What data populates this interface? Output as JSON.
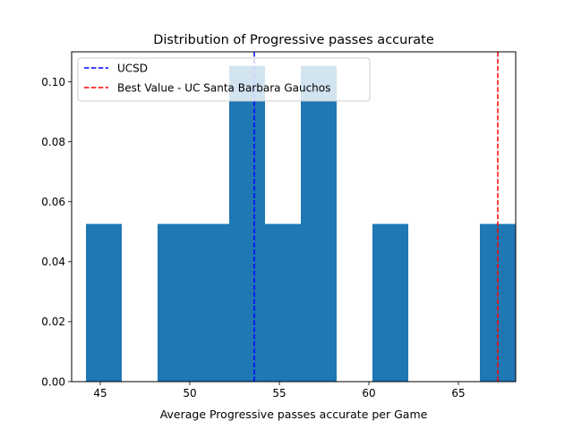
{
  "chart_data": {
    "type": "histogram",
    "title": "Distribution of Progressive passes accurate",
    "xlabel": "Average Progressive passes accurate per Game",
    "ylabel": "",
    "xlim": [
      43.4,
      68.2
    ],
    "ylim": [
      0,
      0.11
    ],
    "xticks": [
      45,
      50,
      55,
      60,
      65
    ],
    "yticks": [
      0.0,
      0.02,
      0.04,
      0.06,
      0.08,
      0.1
    ],
    "ytick_labels": [
      "0.00",
      "0.02",
      "0.04",
      "0.06",
      "0.08",
      "0.10"
    ],
    "bins": [
      {
        "x0": 44.2,
        "x1": 46.2,
        "density": 0.0526
      },
      {
        "x0": 46.2,
        "x1": 48.2,
        "density": 0.0
      },
      {
        "x0": 48.2,
        "x1": 50.2,
        "density": 0.0526
      },
      {
        "x0": 50.2,
        "x1": 52.2,
        "density": 0.0526
      },
      {
        "x0": 52.2,
        "x1": 54.2,
        "density": 0.1053
      },
      {
        "x0": 54.2,
        "x1": 56.2,
        "density": 0.0526
      },
      {
        "x0": 56.2,
        "x1": 58.2,
        "density": 0.1053
      },
      {
        "x0": 58.2,
        "x1": 60.2,
        "density": 0.0
      },
      {
        "x0": 60.2,
        "x1": 62.2,
        "density": 0.0526
      },
      {
        "x0": 62.2,
        "x1": 64.2,
        "density": 0.0
      },
      {
        "x0": 64.2,
        "x1": 66.2,
        "density": 0.0
      },
      {
        "x0": 66.2,
        "x1": 68.2,
        "density": 0.0526
      }
    ],
    "bar_color": "#1f77b4",
    "grid": false,
    "legend_position": "upper-left",
    "vlines": [
      {
        "label": "UCSD",
        "x": 53.6,
        "color": "#0000ff",
        "style": "dashed"
      },
      {
        "label": "Best Value - UC Santa Barbara Gauchos",
        "x": 67.2,
        "color": "#ff0000",
        "style": "dashed"
      }
    ]
  }
}
